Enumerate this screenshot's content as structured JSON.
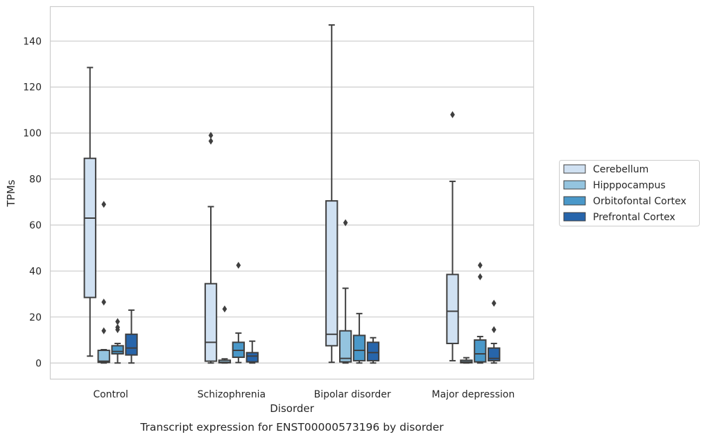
{
  "chart_data": {
    "type": "boxplot",
    "title": "",
    "caption": "Transcript expression for ENST00000573196 by disorder",
    "xlabel": "Disorder",
    "ylabel": "TPMs",
    "ylim": [
      -7,
      155
    ],
    "yticks": [
      0,
      20,
      40,
      60,
      80,
      100,
      120,
      140
    ],
    "grid": "horizontal",
    "legend_position": "right",
    "categories": [
      "Control",
      "Schizophrenia",
      "Bipolar disorder",
      "Major depression"
    ],
    "series": [
      {
        "name": "Cerebellum",
        "color": "#d0e1f2",
        "boxes": [
          {
            "q1": 28.5,
            "median": 63,
            "q3": 89,
            "whislo": 3,
            "whishi": 128.5,
            "fliers": []
          },
          {
            "q1": 0.8,
            "median": 9,
            "q3": 34.5,
            "whislo": 0,
            "whishi": 68,
            "fliers": [
              96.5,
              99
            ]
          },
          {
            "q1": 7.5,
            "median": 12.5,
            "q3": 70.5,
            "whislo": 0.3,
            "whishi": 147,
            "fliers": []
          },
          {
            "q1": 8.5,
            "median": 22.5,
            "q3": 38.5,
            "whislo": 1,
            "whishi": 79,
            "fliers": [
              108
            ]
          }
        ]
      },
      {
        "name": "Hipppocampus",
        "color": "#94c4df",
        "boxes": [
          {
            "q1": 0.3,
            "median": 0.8,
            "q3": 5.5,
            "whislo": 0,
            "whishi": 5.8,
            "fliers": [
              14,
              26.5,
              69
            ]
          },
          {
            "q1": 0.1,
            "median": 0.3,
            "q3": 1.2,
            "whislo": 0,
            "whishi": 1.8,
            "fliers": [
              23.5
            ]
          },
          {
            "q1": 0.5,
            "median": 2,
            "q3": 14,
            "whislo": 0,
            "whishi": 32.5,
            "fliers": [
              61
            ]
          },
          {
            "q1": 0.1,
            "median": 0.5,
            "q3": 1.2,
            "whislo": 0,
            "whishi": 2.3,
            "fliers": []
          }
        ]
      },
      {
        "name": "Orbitofontal Cortex",
        "color": "#4a98c9",
        "boxes": [
          {
            "q1": 4,
            "median": 5,
            "q3": 7.5,
            "whislo": 0,
            "whishi": 8.5,
            "fliers": [
              14.5,
              15.5,
              18
            ]
          },
          {
            "q1": 2.5,
            "median": 5.5,
            "q3": 9,
            "whislo": 0.2,
            "whishi": 13,
            "fliers": [
              42.5
            ]
          },
          {
            "q1": 1,
            "median": 5.5,
            "q3": 12,
            "whislo": 0,
            "whishi": 21.5,
            "fliers": []
          },
          {
            "q1": 0.5,
            "median": 4,
            "q3": 10,
            "whislo": 0,
            "whishi": 11.5,
            "fliers": [
              37.5,
              42.5
            ]
          }
        ]
      },
      {
        "name": "Prefrontal Cortex",
        "color": "#2765ab",
        "boxes": [
          {
            "q1": 3.5,
            "median": 6.5,
            "q3": 12.5,
            "whislo": 0,
            "whishi": 23,
            "fliers": []
          },
          {
            "q1": 0.5,
            "median": 3,
            "q3": 4.5,
            "whislo": 0,
            "whishi": 9.5,
            "fliers": []
          },
          {
            "q1": 1,
            "median": 4.5,
            "q3": 9,
            "whislo": 0,
            "whishi": 11,
            "fliers": []
          },
          {
            "q1": 1,
            "median": 2,
            "q3": 6.5,
            "whislo": 0,
            "whishi": 8.5,
            "fliers": [
              14.5,
              26
            ]
          }
        ]
      }
    ]
  }
}
